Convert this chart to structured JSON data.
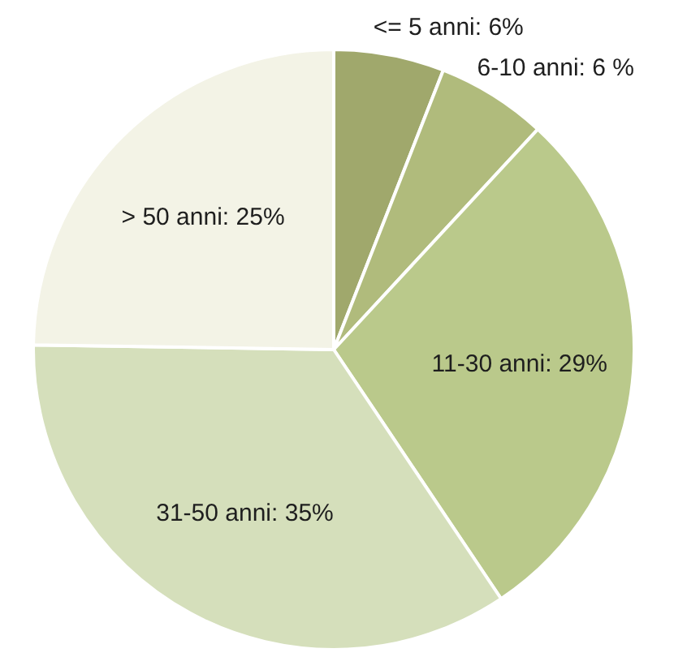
{
  "chart_data": {
    "type": "pie",
    "categories": [
      "<= 5 anni",
      "6-10 anni",
      "11-30 anni",
      "31-50 anni",
      "> 50 anni"
    ],
    "values": [
      6,
      6,
      29,
      35,
      25
    ],
    "value_labels": [
      "6%",
      "6 %",
      "29%",
      "35%",
      "25%"
    ],
    "colors": [
      "#a0a86c",
      "#b0bb7c",
      "#bac98b",
      "#d5dfbb",
      "#f3f3e6"
    ]
  }
}
